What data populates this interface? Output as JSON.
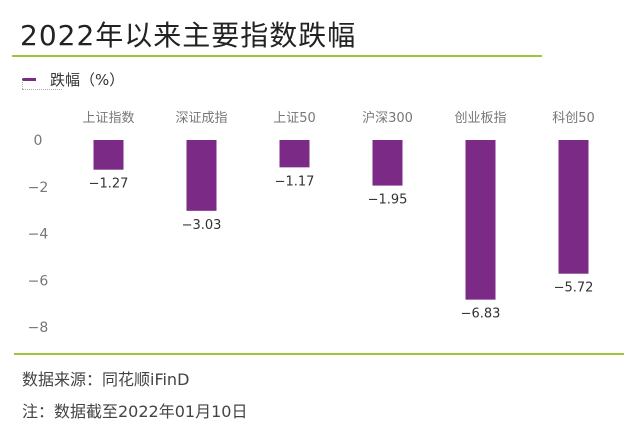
{
  "title": "2022年以来主要指数跌幅",
  "legend": {
    "label": "跌幅（%）"
  },
  "colors": {
    "bar": "#7b2a86",
    "accent_rule": "#9bc53d",
    "axis_text": "#777777"
  },
  "chart_data": {
    "type": "bar",
    "categories": [
      "上证指数",
      "深证成指",
      "上证50",
      "沪深300",
      "创业板指",
      "科创50"
    ],
    "series": [
      {
        "name": "跌幅（%）",
        "values": [
          -1.27,
          -3.03,
          -1.17,
          -1.95,
          -6.83,
          -5.72
        ]
      }
    ],
    "value_labels": [
      "−1.27",
      "−3.03",
      "−1.17",
      "−1.95",
      "−6.83",
      "−5.72"
    ],
    "yticks": [
      0,
      -2,
      -4,
      -6,
      -8
    ],
    "ytick_labels": [
      "0",
      "−2",
      "−4",
      "−6",
      "−8"
    ],
    "ylim": [
      -8,
      0
    ],
    "grid": false,
    "legend_position": "top-left",
    "category_axis_position": "top"
  },
  "footer": {
    "source": "数据来源：同花顺iFinD",
    "note": "注：数据截至2022年01月10日"
  }
}
